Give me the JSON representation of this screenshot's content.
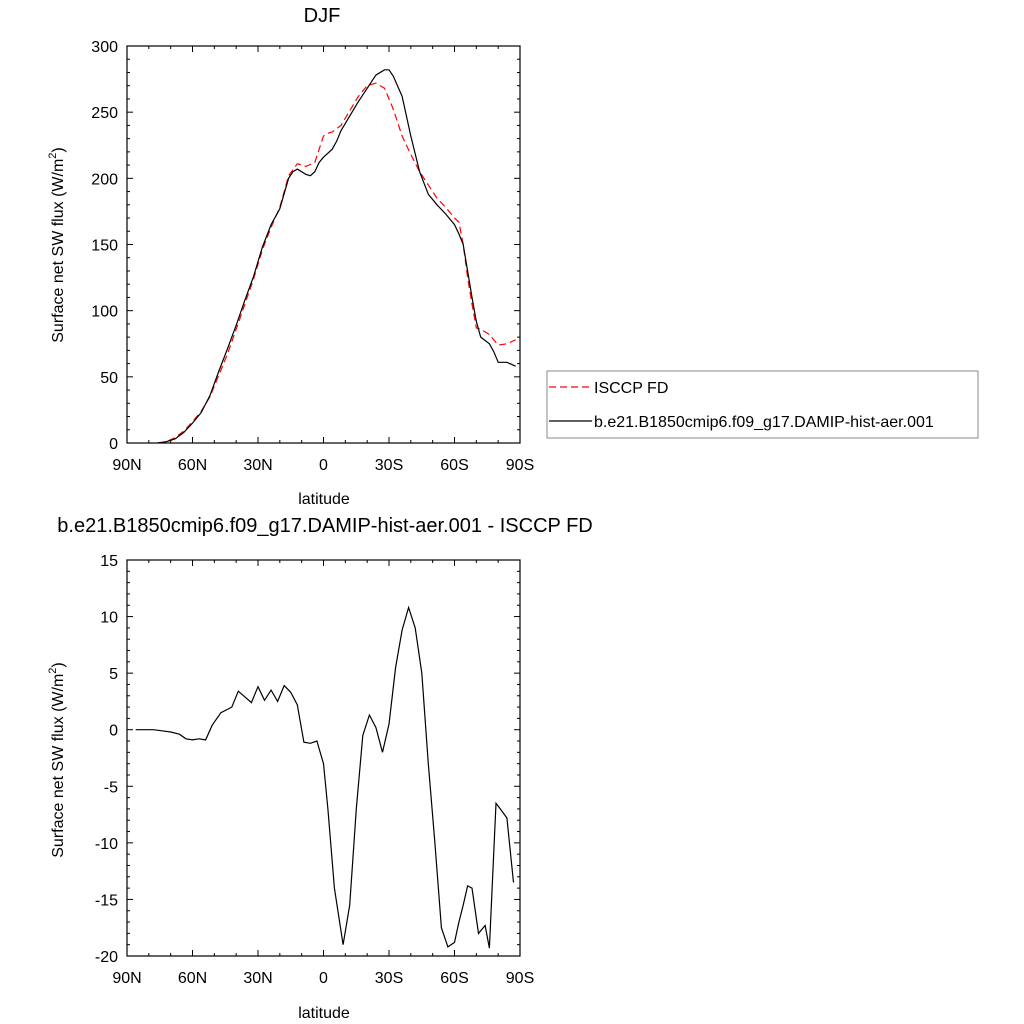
{
  "chart_data": [
    {
      "type": "line",
      "title": "DJF",
      "xlabel": "latitude",
      "ylabel": "Surface net SW flux (W/m",
      "ylabel_sup": "2",
      "ylabel_close": ")",
      "xlim": [
        90,
        -90
      ],
      "ylim": [
        0,
        300
      ],
      "xticks": [
        90,
        60,
        30,
        0,
        -30,
        -60,
        -90
      ],
      "xtick_labels": [
        "90N",
        "60N",
        "30N",
        "0",
        "30S",
        "60S",
        "90S"
      ],
      "yticks": [
        0,
        50,
        100,
        150,
        200,
        250,
        300
      ],
      "ytick_labels": [
        "0",
        "50",
        "100",
        "150",
        "200",
        "250",
        "300"
      ],
      "legend_position": "right",
      "series": [
        {
          "name": "ISCCP FD",
          "color": "#ff0000",
          "dash": "dashed",
          "x": [
            76,
            72,
            68,
            64,
            60,
            56,
            52,
            48,
            44,
            40,
            36,
            32,
            28,
            24,
            20,
            16,
            12,
            8,
            4,
            0,
            -2,
            -4,
            -8,
            -12,
            -16,
            -20,
            -24,
            -28,
            -32,
            -36,
            -40,
            -44,
            -48,
            -52,
            -56,
            -60,
            -62,
            -64,
            -66,
            -68,
            -70,
            -72,
            -76,
            -80,
            -84,
            -88
          ],
          "y": [
            0,
            1,
            4,
            9,
            16,
            24,
            35,
            51,
            67,
            86,
            105,
            124,
            146,
            163,
            178,
            202,
            211,
            209,
            212,
            232,
            234,
            235,
            240,
            251,
            262,
            270,
            272,
            268,
            252,
            232,
            218,
            205,
            195,
            185,
            178,
            170,
            167,
            150,
            125,
            105,
            87,
            86,
            82,
            74,
            75,
            78
          ]
        },
        {
          "name": "b.e21.B1850cmip6.f09_g17.DAMIP-hist-aer.001",
          "color": "#000000",
          "dash": "solid",
          "x": [
            76,
            72,
            68,
            64,
            60,
            56,
            52,
            48,
            44,
            40,
            36,
            32,
            28,
            24,
            20,
            16,
            14,
            12,
            8,
            6,
            4,
            2,
            0,
            -2,
            -4,
            -6,
            -8,
            -12,
            -16,
            -20,
            -24,
            -28,
            -30,
            -32,
            -36,
            -40,
            -44,
            -48,
            -52,
            -56,
            -60,
            -62,
            -64,
            -66,
            -68,
            -70,
            -72,
            -76,
            -78,
            -80,
            -84,
            -88
          ],
          "y": [
            0,
            1,
            3,
            8,
            15,
            23,
            36,
            54,
            71,
            89,
            108,
            126,
            148,
            165,
            177,
            200,
            205,
            207,
            203,
            202,
            205,
            212,
            216,
            219,
            222,
            228,
            236,
            247,
            258,
            268,
            278,
            282,
            282,
            277,
            262,
            232,
            205,
            188,
            180,
            173,
            165,
            158,
            150,
            130,
            110,
            92,
            80,
            75,
            69,
            61,
            61,
            58
          ]
        }
      ]
    },
    {
      "type": "line",
      "title": "b.e21.B1850cmip6.f09_g17.DAMIP-hist-aer.001 - ISCCP FD",
      "xlabel": "latitude",
      "ylabel": "Surface net SW flux (W/m",
      "ylabel_sup": "2",
      "ylabel_close": ")",
      "xlim": [
        90,
        -90
      ],
      "ylim": [
        -20,
        15
      ],
      "xticks": [
        90,
        60,
        30,
        0,
        -30,
        -60,
        -90
      ],
      "xtick_labels": [
        "90N",
        "60N",
        "30N",
        "0",
        "30S",
        "60S",
        "90S"
      ],
      "yticks": [
        -20,
        -15,
        -10,
        -5,
        0,
        5,
        10,
        15
      ],
      "ytick_labels": [
        "-20",
        "-15",
        "-10",
        "-5",
        "0",
        "5",
        "10",
        "15"
      ],
      "series": [
        {
          "color": "#000000",
          "dash": "solid",
          "x": [
            86,
            82,
            78,
            74,
            70,
            66,
            63,
            60,
            57,
            54,
            51,
            47,
            42,
            39,
            36,
            33,
            30,
            27,
            24,
            21,
            18,
            15,
            12,
            9,
            6,
            3,
            0,
            -2,
            -5,
            -9,
            -12,
            -15,
            -18,
            -21,
            -24,
            -27,
            -30,
            -33,
            -36,
            -39,
            -42,
            -45,
            -48,
            -51,
            -54,
            -57,
            -60,
            -62,
            -64,
            -66,
            -68,
            -71,
            -74,
            -76,
            -79,
            -81,
            -84,
            -87
          ],
          "y": [
            0,
            0,
            0,
            -0.1,
            -0.2,
            -0.4,
            -0.8,
            -0.9,
            -0.8,
            -0.9,
            0.4,
            1.5,
            2.0,
            3.4,
            2.9,
            2.4,
            3.8,
            2.6,
            3.5,
            2.5,
            3.9,
            3.3,
            2.2,
            -1.1,
            -1.2,
            -1.0,
            -3.0,
            -7.0,
            -14.0,
            -19.0,
            -15.5,
            -7.0,
            -0.5,
            1.3,
            0.2,
            -2.0,
            0.5,
            5.5,
            8.8,
            10.8,
            9.0,
            5.0,
            -3.0,
            -10.0,
            -17.5,
            -19.2,
            -18.8,
            -17.0,
            -15.5,
            -13.8,
            -14.0,
            -18.0,
            -17.3,
            -19.3,
            -6.5,
            -7.0,
            -7.8,
            -13.5
          ]
        }
      ]
    }
  ]
}
